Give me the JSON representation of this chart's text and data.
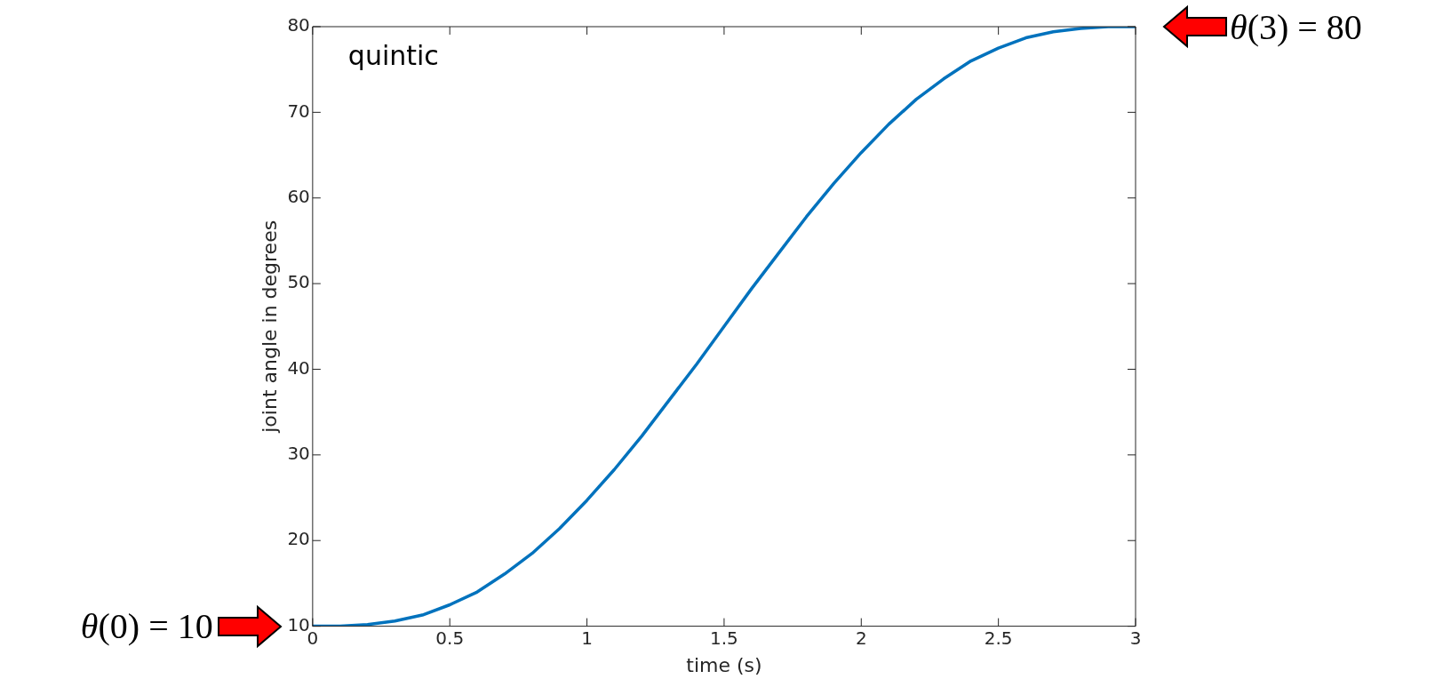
{
  "chart_data": {
    "type": "line",
    "xlabel": "time (s)",
    "ylabel": "joint angle in degrees",
    "x": [
      0,
      0.1,
      0.2,
      0.3,
      0.4,
      0.5,
      0.6,
      0.7,
      0.8,
      0.9,
      1.0,
      1.1,
      1.2,
      1.3,
      1.4,
      1.5,
      1.6,
      1.7,
      1.8,
      1.9,
      2.0,
      2.1,
      2.2,
      2.3,
      2.4,
      2.5,
      2.6,
      2.7,
      2.8,
      2.9,
      3.0
    ],
    "series": [
      {
        "color": "#0072bd",
        "values": [
          10,
          10,
          10.2,
          10.6,
          11.3,
          12.5,
          14,
          16.1,
          18.5,
          21.4,
          24.7,
          28.3,
          32.2,
          36.4,
          40.6,
          45,
          49.4,
          53.6,
          57.8,
          61.7,
          65.3,
          68.6,
          71.5,
          73.9,
          76,
          77.5,
          78.7,
          79.4,
          79.8,
          80,
          80
        ]
      }
    ],
    "xlim": [
      0,
      3
    ],
    "xticks": [
      0,
      0.5,
      1,
      1.5,
      2,
      2.5,
      3
    ],
    "ylim": [
      10,
      80
    ],
    "yticks": [
      10,
      20,
      30,
      40,
      50,
      60,
      70,
      80
    ],
    "grid": false,
    "legend": false,
    "marker": "none",
    "line_style": "solid",
    "annotations": [
      "quintic",
      {
        "text": "θ(0) = 10",
        "x": 0,
        "y": 10
      },
      {
        "text": "θ(3) = 80",
        "x": 3,
        "y": 80
      }
    ]
  }
}
